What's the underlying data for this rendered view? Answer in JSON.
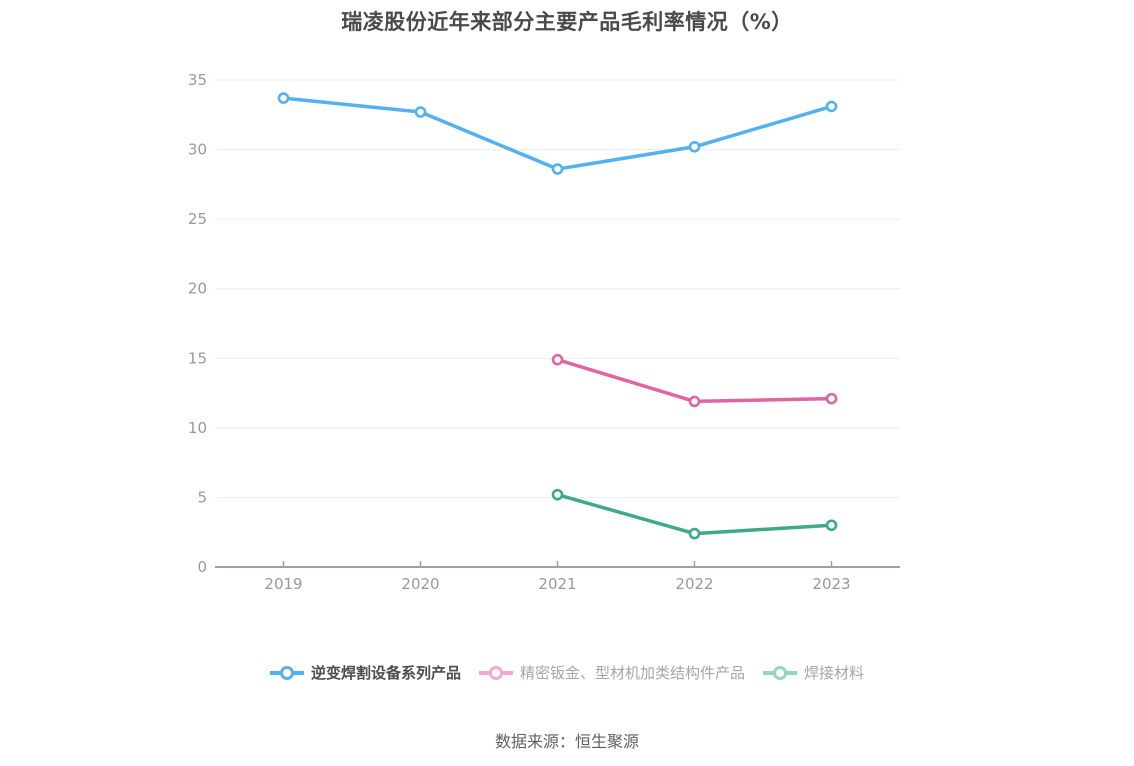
{
  "title": "瑞凌股份近年来部分主要产品毛利率情况（%）",
  "footer": "数据来源：恒生聚源",
  "colors": {
    "axis_line": "#9aa0a6",
    "grid_line": "#e9edf4",
    "axis_tick_label": "#999999",
    "title_text": "#4a4a4a",
    "footer_text": "#606060",
    "legend_active_text": "#4d4d4d",
    "legend_inactive_text": "#a6a6a6",
    "marker_fill": "#ffffff"
  },
  "chart_data": {
    "type": "line",
    "title": "瑞凌股份近年来部分主要产品毛利率情况（%）",
    "x": [
      "2019",
      "2020",
      "2021",
      "2022",
      "2023"
    ],
    "series": [
      {
        "name": "逆变焊割设备系列产品",
        "color": "#54b0ef",
        "legend_marker_color": "#54b0ef",
        "legend_state": "active",
        "values": [
          33.7,
          32.7,
          28.6,
          30.2,
          33.1
        ]
      },
      {
        "name": "精密钣金、型材机加类结构件产品",
        "color": "#e263a2",
        "legend_marker_color": "#f2a9cd",
        "legend_state": "inactive",
        "values": [
          null,
          null,
          14.9,
          11.9,
          12.1
        ]
      },
      {
        "name": "焊接材料",
        "color": "#3fa98c",
        "legend_marker_color": "#96d5bf",
        "legend_state": "inactive",
        "values": [
          null,
          null,
          5.2,
          2.4,
          3.0
        ]
      }
    ],
    "ylim": [
      0,
      35
    ],
    "y_ticks": [
      0,
      5,
      10,
      15,
      20,
      25,
      30,
      35
    ],
    "grid": true,
    "legend_position": "bottom",
    "source_note": "数据来源：恒生聚源"
  }
}
